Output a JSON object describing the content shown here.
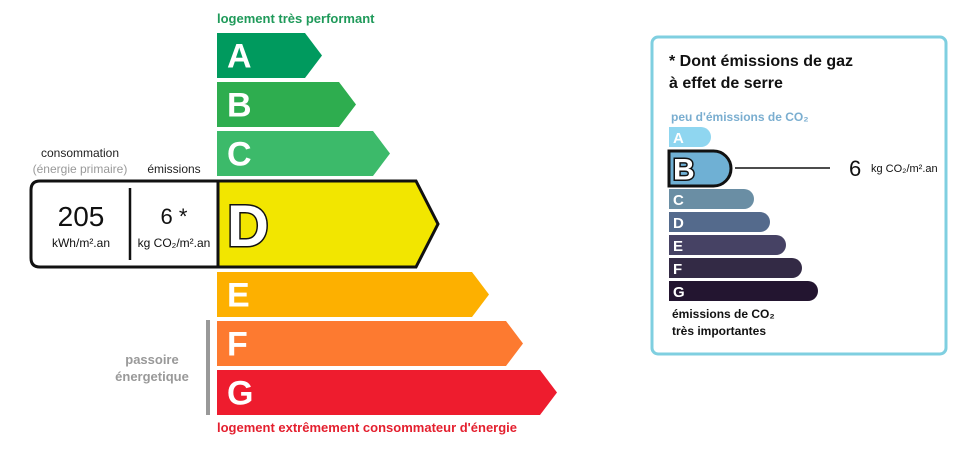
{
  "energy": {
    "top_label": "logement très performant",
    "bottom_label": "logement extrêmement consommateur d'énergie",
    "classes": [
      {
        "letter": "A",
        "color": "#009a5e"
      },
      {
        "letter": "B",
        "color": "#2ead4f"
      },
      {
        "letter": "C",
        "color": "#3cba6a"
      },
      {
        "letter": "D",
        "color": "#f2e600"
      },
      {
        "letter": "E",
        "color": "#fdb000"
      },
      {
        "letter": "F",
        "color": "#fd7a30"
      },
      {
        "letter": "G",
        "color": "#ee1c2e"
      }
    ],
    "current_class": "D",
    "passoire_line1": "passoire",
    "passoire_line2": "énergetique",
    "consumption_label": "consommation",
    "consumption_sublabel": "(énergie primaire)",
    "emissions_label": "émissions",
    "consumption_value": "205",
    "consumption_unit": "kWh/m².an",
    "emissions_value": "6 *",
    "emissions_unit": "kg CO₂/m².an"
  },
  "ges": {
    "title_line1": "* Dont émissions de gaz",
    "title_line2": "à effet de serre",
    "top_label": "peu d'émissions de CO₂",
    "bottom_label_line1": "émissions de CO₂",
    "bottom_label_line2": "très importantes",
    "classes": [
      {
        "letter": "A",
        "color": "#8fd6f0"
      },
      {
        "letter": "B",
        "color": "#6fb0d4"
      },
      {
        "letter": "C",
        "color": "#6a8ea4"
      },
      {
        "letter": "D",
        "color": "#546a8c"
      },
      {
        "letter": "E",
        "color": "#464264"
      },
      {
        "letter": "F",
        "color": "#332a45"
      },
      {
        "letter": "G",
        "color": "#231530"
      }
    ],
    "current_class": "B",
    "value": "6",
    "unit": "kg CO₂/m².an",
    "border_color": "#7fcfe0"
  }
}
